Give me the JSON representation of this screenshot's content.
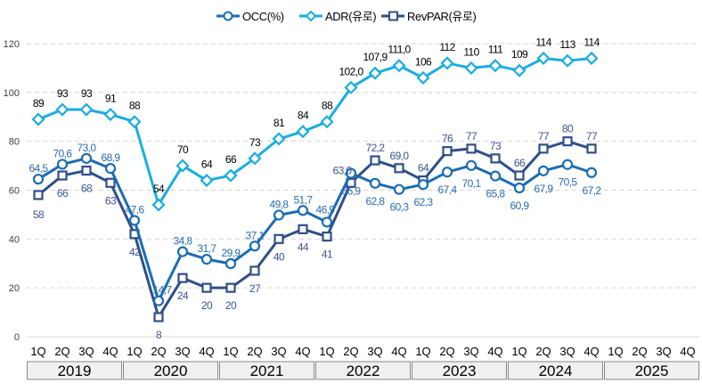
{
  "chart_data": {
    "type": "line",
    "title": "",
    "xlabel": "",
    "ylabel": "",
    "ylim": [
      0,
      120
    ],
    "yticks": [
      0,
      20,
      40,
      60,
      80,
      100,
      120
    ],
    "grid": true,
    "legend_position": "top-center",
    "quarters": [
      "1Q",
      "2Q",
      "3Q",
      "4Q"
    ],
    "years": [
      "2019",
      "2020",
      "2021",
      "2022",
      "2023",
      "2024",
      "2025"
    ],
    "series": [
      {
        "name": "OCC(%)",
        "marker": "circle",
        "color": "#1a6db5",
        "label_color": "#2a6cb0",
        "values": [
          64.5,
          70.6,
          73.0,
          68.9,
          47.6,
          14.7,
          34.8,
          31.7,
          29.9,
          37.1,
          49.8,
          51.7,
          46.9,
          66.9,
          62.8,
          60.3,
          62.3,
          67.4,
          70.1,
          65.8,
          60.9,
          67.9,
          70.5,
          67.2
        ],
        "labels": [
          "64,5",
          "70,6",
          "73,0",
          "68,9",
          "47,6",
          "14,7",
          "34,8",
          "31,7",
          "29,9",
          "37,1",
          "49,8",
          "51,7",
          "46,9",
          "66,9",
          "62,8",
          "60,3",
          "62,3",
          "67,4",
          "70,1",
          "65,8",
          "60,9",
          "67,9",
          "70,5",
          "67,2"
        ]
      },
      {
        "name": "ADR(유로)",
        "marker": "diamond",
        "color": "#19ade3",
        "label_color": "#000000",
        "values": [
          89,
          93,
          93,
          91,
          88,
          54,
          70,
          64,
          66,
          73,
          81,
          84,
          88,
          102.0,
          107.9,
          111.0,
          106,
          112,
          110,
          111,
          109,
          114,
          113,
          114
        ],
        "labels": [
          "89",
          "93",
          "93",
          "91",
          "88",
          "54",
          "70",
          "64",
          "66",
          "73",
          "81",
          "84",
          "88",
          "102,0",
          "107,9",
          "111,0",
          "106",
          "112",
          "110",
          "111",
          "109",
          "114",
          "113",
          "114"
        ]
      },
      {
        "name": "RevPAR(유로)",
        "marker": "square",
        "color": "#2e4f8c",
        "label_color": "#3a5590",
        "values": [
          58,
          66,
          68,
          63,
          42,
          8,
          24,
          20,
          20,
          27,
          40,
          44,
          41,
          63.0,
          72.2,
          69.0,
          64,
          76,
          77,
          73,
          66,
          77,
          80,
          77
        ],
        "labels": [
          "58",
          "66",
          "68",
          "63",
          "42",
          "8",
          "24",
          "20",
          "20",
          "27",
          "40",
          "44",
          "41",
          "63,0",
          "72,2",
          "69,0",
          "64",
          "76",
          "77",
          "73",
          "66",
          "77",
          "80",
          "77"
        ]
      }
    ]
  }
}
